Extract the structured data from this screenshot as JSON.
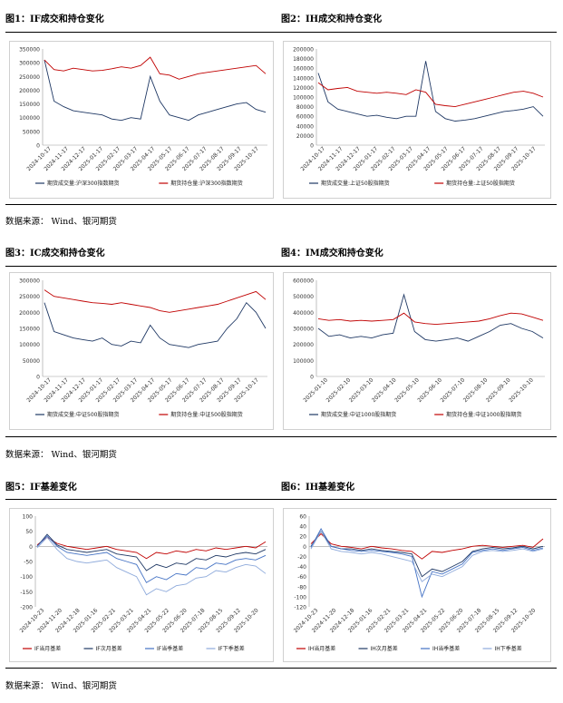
{
  "figures": [
    {
      "title": "图1：IF成交和持仓变化"
    },
    {
      "title": "图2：IH成交和持仓变化"
    },
    {
      "title": "图3：IC成交和持仓变化"
    },
    {
      "title": "图4：IM成交和持仓变化"
    },
    {
      "title": "图5：IF基差变化"
    },
    {
      "title": "图6：IH基差变化"
    }
  ],
  "sources": [
    {
      "label": "数据来源：",
      "text": "Wind、银河期货"
    },
    {
      "label": "数据来源：",
      "text": "Wind、银河期货"
    },
    {
      "label": "数据来源：",
      "text": "Wind、银河期货"
    }
  ],
  "colors": {
    "navy": "#1f3864",
    "red": "#c00000",
    "blue": "#4472c4",
    "lightblue": "#8eaadb"
  },
  "chart_data": [
    {
      "type": "line",
      "yticks": [
        "350000",
        "300000",
        "250000",
        "200000",
        "150000",
        "100000",
        "50000",
        "0"
      ],
      "ylim": [
        0,
        350000
      ],
      "xticks": [
        "2024-10-17",
        "2024-11-17",
        "2024-12-17",
        "2025-01-17",
        "2025-02-17",
        "2025-03-17",
        "2025-04-17",
        "2025-05-17",
        "2025-06-17",
        "2025-07-17",
        "2025-08-17",
        "2025-09-17",
        "2025-10-17"
      ],
      "series": [
        {
          "name": "期货成交量:沪深300指数期货",
          "color": "#1f3864",
          "values": [
            310000,
            160000,
            140000,
            125000,
            120000,
            115000,
            110000,
            95000,
            90000,
            100000,
            95000,
            250000,
            160000,
            110000,
            100000,
            90000,
            110000,
            120000,
            130000,
            140000,
            150000,
            155000,
            130000,
            120000
          ]
        },
        {
          "name": "期货持仓量:沪深300指数期货",
          "color": "#c00000",
          "values": [
            310000,
            275000,
            270000,
            280000,
            275000,
            270000,
            272000,
            278000,
            285000,
            280000,
            290000,
            320000,
            260000,
            255000,
            240000,
            250000,
            260000,
            265000,
            270000,
            275000,
            280000,
            285000,
            290000,
            260000
          ]
        }
      ]
    },
    {
      "type": "line",
      "yticks": [
        "200000",
        "180000",
        "160000",
        "140000",
        "120000",
        "100000",
        "80000",
        "60000",
        "40000",
        "20000",
        "0"
      ],
      "ylim": [
        0,
        200000
      ],
      "xticks": [
        "2024-10-17",
        "2024-11-17",
        "2024-12-17",
        "2025-01-17",
        "2025-02-17",
        "2025-03-17",
        "2025-04-17",
        "2025-05-17",
        "2025-06-17",
        "2025-07-17",
        "2025-08-17",
        "2025-09-17",
        "2025-10-17"
      ],
      "series": [
        {
          "name": "期货成交量:上证50股指期货",
          "color": "#1f3864",
          "values": [
            150000,
            90000,
            75000,
            70000,
            65000,
            60000,
            62000,
            58000,
            55000,
            60000,
            60000,
            175000,
            70000,
            55000,
            50000,
            52000,
            55000,
            60000,
            65000,
            70000,
            72000,
            75000,
            80000,
            60000
          ]
        },
        {
          "name": "期货持仓量:上证50股指期货",
          "color": "#c00000",
          "values": [
            130000,
            115000,
            118000,
            120000,
            112000,
            110000,
            108000,
            110000,
            108000,
            105000,
            115000,
            110000,
            85000,
            82000,
            80000,
            85000,
            90000,
            95000,
            100000,
            105000,
            110000,
            112000,
            108000,
            100000
          ]
        }
      ]
    },
    {
      "type": "line",
      "yticks": [
        "300000",
        "250000",
        "200000",
        "150000",
        "100000",
        "50000",
        "0"
      ],
      "ylim": [
        0,
        300000
      ],
      "xticks": [
        "2024-10-17",
        "2024-11-17",
        "2024-12-17",
        "2025-01-17",
        "2025-02-17",
        "2025-03-17",
        "2025-04-17",
        "2025-05-17",
        "2025-06-17",
        "2025-07-17",
        "2025-08-17",
        "2025-09-17",
        "2025-10-17"
      ],
      "series": [
        {
          "name": "期货成交量:中证500股指期货",
          "color": "#1f3864",
          "values": [
            230000,
            140000,
            130000,
            120000,
            115000,
            110000,
            120000,
            100000,
            95000,
            110000,
            105000,
            160000,
            120000,
            100000,
            95000,
            90000,
            100000,
            105000,
            110000,
            150000,
            180000,
            230000,
            200000,
            150000
          ]
        },
        {
          "name": "期货持仓量:中证500股指期货",
          "color": "#c00000",
          "values": [
            270000,
            250000,
            245000,
            240000,
            235000,
            230000,
            228000,
            225000,
            230000,
            225000,
            220000,
            215000,
            205000,
            200000,
            205000,
            210000,
            215000,
            220000,
            225000,
            235000,
            245000,
            255000,
            265000,
            240000
          ]
        }
      ]
    },
    {
      "type": "line",
      "yticks": [
        "600000",
        "500000",
        "400000",
        "300000",
        "200000",
        "100000",
        "0"
      ],
      "ylim": [
        0,
        600000
      ],
      "xticks": [
        "2025-01-10",
        "2025-02-10",
        "2025-03-10",
        "2025-04-10",
        "2025-05-10",
        "2025-06-10",
        "2025-07-10",
        "2025-08-10",
        "2025-09-10",
        "2025-10-10"
      ],
      "series": [
        {
          "name": "期货成交量:中证1000股指期货",
          "color": "#1f3864",
          "values": [
            300000,
            250000,
            260000,
            240000,
            250000,
            240000,
            260000,
            270000,
            510000,
            280000,
            230000,
            220000,
            230000,
            240000,
            220000,
            250000,
            280000,
            320000,
            330000,
            300000,
            280000,
            240000
          ]
        },
        {
          "name": "期货持仓量:中证1000股指期货",
          "color": "#c00000",
          "values": [
            360000,
            350000,
            355000,
            345000,
            350000,
            345000,
            350000,
            355000,
            395000,
            340000,
            330000,
            325000,
            330000,
            335000,
            340000,
            345000,
            360000,
            380000,
            395000,
            390000,
            370000,
            350000
          ]
        }
      ]
    },
    {
      "type": "line",
      "yticks": [
        "100",
        "50",
        "0",
        "-50",
        "-100",
        "-150",
        "-200"
      ],
      "ylim": [
        -200,
        100
      ],
      "xticks": [
        "2024-10-23",
        "2024-11-20",
        "2024-12-18",
        "2025-01-16",
        "2025-02-21",
        "2025-03-21",
        "2025-04-21",
        "2025-05-22",
        "2025-06-20",
        "2025-07-18",
        "2025-08-15",
        "2025-09-12",
        "2025-10-20"
      ],
      "series": [
        {
          "name": "IF当月基差",
          "color": "#c00000",
          "values": [
            5,
            30,
            10,
            0,
            -5,
            -10,
            -5,
            0,
            -10,
            -15,
            -20,
            -40,
            -20,
            -25,
            -15,
            -20,
            -10,
            -15,
            -5,
            -10,
            -5,
            0,
            -5,
            15
          ]
        },
        {
          "name": "IF次月基差",
          "color": "#1f3864",
          "values": [
            0,
            40,
            5,
            -10,
            -15,
            -20,
            -15,
            -10,
            -25,
            -30,
            -35,
            -80,
            -60,
            -70,
            -55,
            -60,
            -40,
            -45,
            -30,
            -35,
            -25,
            -20,
            -25,
            -10
          ]
        },
        {
          "name": "IF当季基差",
          "color": "#4472c4",
          "values": [
            0,
            35,
            0,
            -20,
            -25,
            -30,
            -25,
            -20,
            -40,
            -50,
            -60,
            -120,
            -100,
            -110,
            -90,
            -95,
            -70,
            -75,
            -55,
            -60,
            -45,
            -40,
            -45,
            -30
          ]
        },
        {
          "name": "IF下季基差",
          "color": "#8eaadb",
          "values": [
            -5,
            30,
            -10,
            -40,
            -50,
            -55,
            -50,
            -45,
            -70,
            -85,
            -100,
            -160,
            -140,
            -150,
            -130,
            -125,
            -105,
            -100,
            -80,
            -85,
            -70,
            -60,
            -65,
            -90
          ]
        }
      ]
    },
    {
      "type": "line",
      "yticks": [
        "60",
        "40",
        "20",
        "0",
        "-20",
        "-40",
        "-60",
        "-80",
        "-100",
        "-120"
      ],
      "ylim": [
        -120,
        60
      ],
      "xticks": [
        "2024-10-23",
        "2024-11-20",
        "2024-12-18",
        "2025-01-16",
        "2025-02-21",
        "2025-03-21",
        "2025-04-21",
        "2025-05-22",
        "2025-06-20",
        "2025-07-18",
        "2025-08-15",
        "2025-09-12",
        "2025-10-20"
      ],
      "series": [
        {
          "name": "IH当月基差",
          "color": "#c00000",
          "values": [
            5,
            25,
            5,
            0,
            -2,
            -5,
            0,
            -3,
            -5,
            -8,
            -10,
            -25,
            -10,
            -12,
            -8,
            -5,
            0,
            2,
            0,
            -2,
            0,
            2,
            -2,
            15
          ]
        },
        {
          "name": "IH次月基差",
          "color": "#1f3864",
          "values": [
            0,
            30,
            0,
            -5,
            -5,
            -8,
            -5,
            -8,
            -10,
            -12,
            -15,
            -60,
            -45,
            -50,
            -40,
            -30,
            -10,
            -5,
            -2,
            -5,
            -3,
            0,
            -5,
            0
          ]
        },
        {
          "name": "IH当季基差",
          "color": "#4472c4",
          "values": [
            -2,
            35,
            0,
            -5,
            -8,
            -10,
            -8,
            -10,
            -12,
            -15,
            -20,
            -100,
            -50,
            -55,
            -45,
            -35,
            -12,
            -8,
            -5,
            -8,
            -5,
            -2,
            -8,
            -3
          ]
        },
        {
          "name": "IH下季基差",
          "color": "#8eaadb",
          "values": [
            -5,
            30,
            -5,
            -10,
            -12,
            -15,
            -12,
            -15,
            -20,
            -25,
            -30,
            -70,
            -55,
            -60,
            -50,
            -40,
            -18,
            -10,
            -8,
            -10,
            -8,
            -5,
            -10,
            -5
          ]
        }
      ]
    }
  ]
}
